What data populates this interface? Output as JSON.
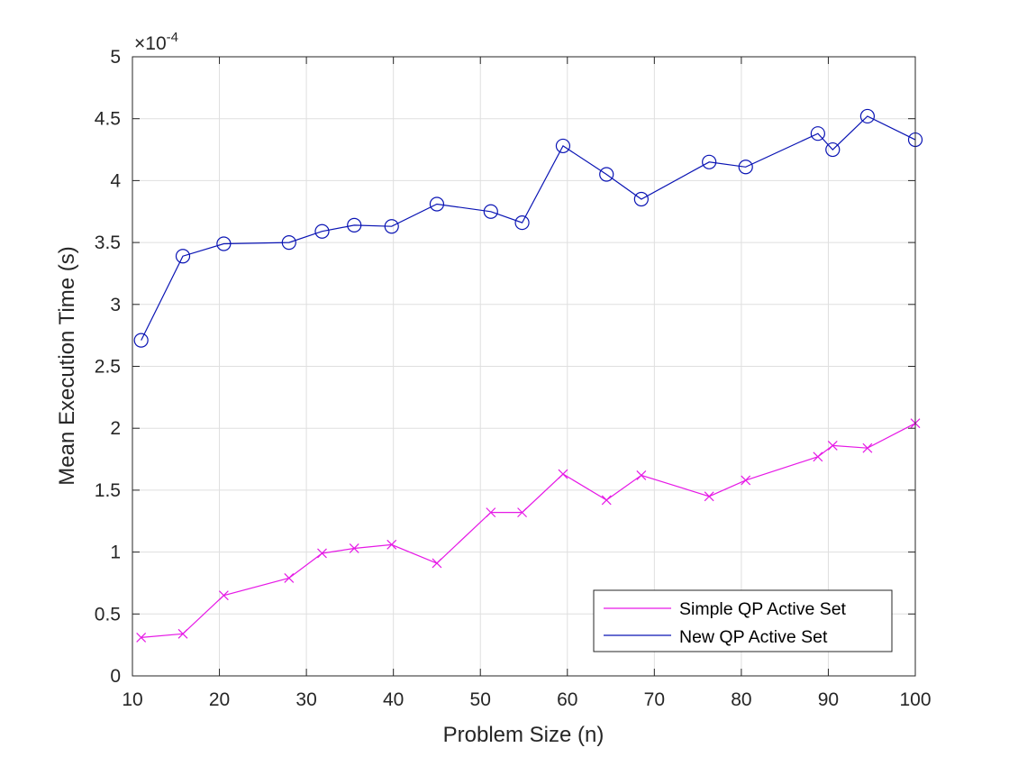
{
  "chart_data": {
    "type": "line",
    "title": "",
    "xlabel": "Problem Size (n)",
    "ylabel": "Mean Execution Time (s)",
    "y_exponent_label": "×10",
    "y_exponent_power": "-4",
    "xlim": [
      10,
      100
    ],
    "ylim": [
      0,
      5
    ],
    "y_scale_factor": 0.0001,
    "xticks": [
      10,
      20,
      30,
      40,
      50,
      60,
      70,
      80,
      90,
      100
    ],
    "xtick_labels": [
      "10",
      "20",
      "30",
      "40",
      "50",
      "60",
      "70",
      "80",
      "90",
      "100"
    ],
    "yticks": [
      0,
      0.5,
      1,
      1.5,
      2,
      2.5,
      3,
      3.5,
      4,
      4.5,
      5
    ],
    "ytick_labels": [
      "0",
      "0.5",
      "1",
      "1.5",
      "2",
      "2.5",
      "3",
      "3.5",
      "4",
      "4.5",
      "5"
    ],
    "grid": true,
    "legend_position": "bottom-right",
    "series": [
      {
        "name": "Simple QP Active Set",
        "color": "#e619e6",
        "marker": "x",
        "x": [
          11,
          15.8,
          20.5,
          28,
          31.8,
          35.5,
          39.8,
          45,
          51.2,
          54.8,
          59.5,
          64.5,
          68.5,
          76.3,
          80.5,
          88.8,
          90.5,
          94.5,
          100
        ],
        "y": [
          0.31,
          0.34,
          0.65,
          0.79,
          0.99,
          1.03,
          1.06,
          0.91,
          1.32,
          1.32,
          1.63,
          1.42,
          1.62,
          1.45,
          1.58,
          1.77,
          1.86,
          1.84,
          2.04
        ]
      },
      {
        "name": "New QP Active Set",
        "color": "#0a14b4",
        "marker": "o",
        "x": [
          11,
          15.8,
          20.5,
          28,
          31.8,
          35.5,
          39.8,
          45,
          51.2,
          54.8,
          59.5,
          64.5,
          68.5,
          76.3,
          80.5,
          88.8,
          90.5,
          94.5,
          100
        ],
        "y": [
          2.71,
          3.39,
          3.49,
          3.5,
          3.59,
          3.64,
          3.63,
          3.81,
          3.75,
          3.66,
          4.28,
          4.05,
          3.85,
          4.15,
          4.11,
          4.38,
          4.25,
          4.52,
          4.33
        ]
      }
    ]
  }
}
